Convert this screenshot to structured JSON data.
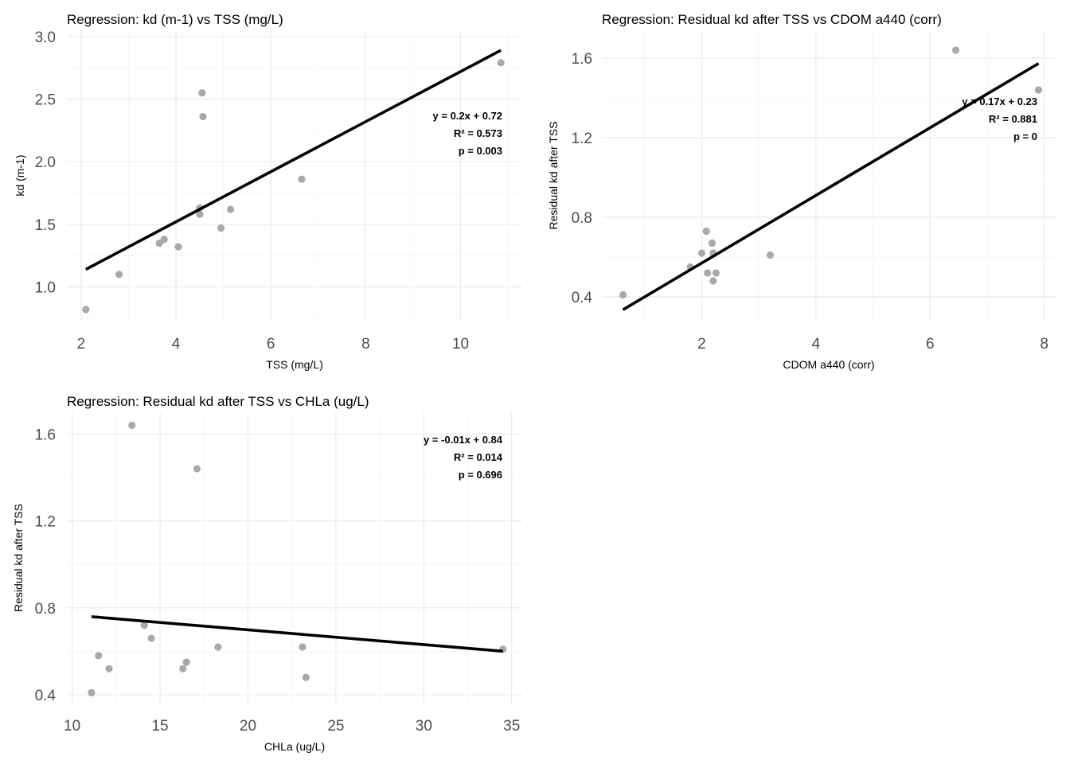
{
  "chart_data": [
    {
      "type": "scatter",
      "title": "Regression: kd (m-1) vs TSS (mg/L)",
      "xlabel": "TSS (mg/L)",
      "ylabel": "kd (m-1)",
      "xlim": [
        1.7,
        11.3
      ],
      "ylim": [
        0.73,
        3.05
      ],
      "xticks": [
        2,
        4,
        6,
        8,
        10
      ],
      "yticks": [
        1.0,
        1.5,
        2.0,
        2.5,
        3.0
      ],
      "xtick_labels": [
        "2",
        "4",
        "6",
        "8",
        "10"
      ],
      "ytick_labels": [
        "1.0",
        "1.5",
        "2.0",
        "2.5",
        "3.0"
      ],
      "grid": true,
      "points": [
        {
          "x": 2.1,
          "y": 0.82
        },
        {
          "x": 2.8,
          "y": 1.1
        },
        {
          "x": 3.65,
          "y": 1.35
        },
        {
          "x": 3.75,
          "y": 1.38
        },
        {
          "x": 4.05,
          "y": 1.32
        },
        {
          "x": 4.5,
          "y": 1.63
        },
        {
          "x": 4.5,
          "y": 1.58
        },
        {
          "x": 4.55,
          "y": 2.55
        },
        {
          "x": 4.57,
          "y": 2.36
        },
        {
          "x": 4.95,
          "y": 1.47
        },
        {
          "x": 5.15,
          "y": 1.62
        },
        {
          "x": 6.65,
          "y": 1.86
        },
        {
          "x": 10.85,
          "y": 2.79
        }
      ],
      "fit": {
        "slope": 0.2,
        "intercept": 0.72,
        "x_range": [
          2.1,
          10.85
        ]
      },
      "annotation": {
        "equation": "y = 0.2x + 0.72",
        "r2": "R² = 0.573",
        "p": "p = 0.003"
      }
    },
    {
      "type": "scatter",
      "title": "Regression: Residual kd after TSS vs CDOM a440 (corr)",
      "xlabel": "CDOM a440 (corr)",
      "ylabel": "Residual kd after TSS",
      "xlim": [
        0.25,
        8.2
      ],
      "ylim": [
        0.28,
        1.74
      ],
      "xticks": [
        2,
        4,
        6,
        8
      ],
      "yticks": [
        0.4,
        0.8,
        1.2,
        1.6
      ],
      "xtick_labels": [
        "2",
        "4",
        "6",
        "8"
      ],
      "ytick_labels": [
        "0.4",
        "0.8",
        "1.2",
        "1.6"
      ],
      "grid": true,
      "points": [
        {
          "x": 0.62,
          "y": 0.41
        },
        {
          "x": 1.8,
          "y": 0.55
        },
        {
          "x": 2.0,
          "y": 0.62
        },
        {
          "x": 2.08,
          "y": 0.73
        },
        {
          "x": 2.1,
          "y": 0.52
        },
        {
          "x": 2.18,
          "y": 0.67
        },
        {
          "x": 2.2,
          "y": 0.62
        },
        {
          "x": 2.2,
          "y": 0.48
        },
        {
          "x": 2.25,
          "y": 0.52
        },
        {
          "x": 3.2,
          "y": 0.61
        },
        {
          "x": 6.45,
          "y": 1.64
        },
        {
          "x": 7.9,
          "y": 1.44
        }
      ],
      "fit": {
        "slope": 0.17,
        "intercept": 0.23,
        "x_range": [
          0.62,
          7.9
        ]
      },
      "annotation": {
        "equation": "y = 0.17x + 0.23",
        "r2": "R² = 0.881",
        "p": "p = 0"
      }
    },
    {
      "type": "scatter",
      "title": "Regression: Residual kd after TSS vs CHLa (ug/L)",
      "xlabel": "CHLa (ug/L)",
      "ylabel": "Residual kd after TSS",
      "xlim": [
        9.7,
        35.6
      ],
      "ylim": [
        0.36,
        1.7
      ],
      "xticks": [
        10,
        15,
        20,
        25,
        30,
        35
      ],
      "yticks": [
        0.4,
        0.8,
        1.2,
        1.6
      ],
      "xtick_labels": [
        "10",
        "15",
        "20",
        "25",
        "30",
        "35"
      ],
      "ytick_labels": [
        "0.4",
        "0.8",
        "1.2",
        "1.6"
      ],
      "grid": true,
      "points": [
        {
          "x": 11.1,
          "y": 0.41
        },
        {
          "x": 11.5,
          "y": 0.58
        },
        {
          "x": 12.1,
          "y": 0.52
        },
        {
          "x": 13.4,
          "y": 1.64
        },
        {
          "x": 14.1,
          "y": 0.72
        },
        {
          "x": 14.5,
          "y": 0.66
        },
        {
          "x": 16.3,
          "y": 0.52
        },
        {
          "x": 16.5,
          "y": 0.55
        },
        {
          "x": 17.1,
          "y": 1.44
        },
        {
          "x": 18.3,
          "y": 0.62
        },
        {
          "x": 23.1,
          "y": 0.62
        },
        {
          "x": 23.3,
          "y": 0.48
        },
        {
          "x": 34.5,
          "y": 0.61
        }
      ],
      "fit": {
        "slope": -0.0068,
        "intercept": 0.835,
        "x_range": [
          11.1,
          34.5
        ]
      },
      "annotation": {
        "equation": "y = -0.01x + 0.84",
        "r2": "R² = 0.014",
        "p": "p = 0.696"
      }
    }
  ]
}
